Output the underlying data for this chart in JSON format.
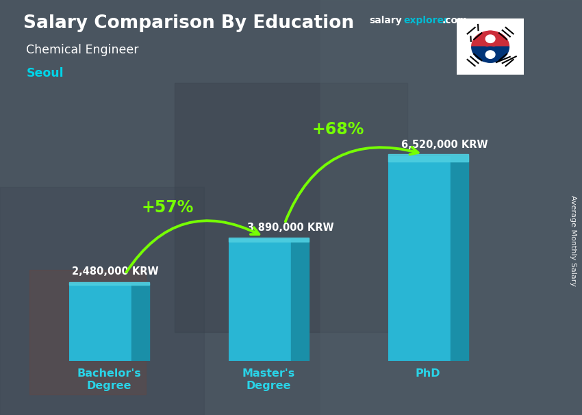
{
  "title_line1": "Salary Comparison By Education",
  "subtitle": "Chemical Engineer",
  "location": "Seoul",
  "categories": [
    "Bachelor's\nDegree",
    "Master's\nDegree",
    "PhD"
  ],
  "values": [
    2480000,
    3890000,
    6520000
  ],
  "value_labels": [
    "2,480,000 KRW",
    "3,890,000 KRW",
    "6,520,000 KRW"
  ],
  "bar_color_left": "#29b6d4",
  "bar_color_right": "#1a8fa8",
  "bar_color_top": "#4ecee0",
  "pct_labels": [
    "+57%",
    "+68%"
  ],
  "pct_color": "#76ff03",
  "arrow_color": "#76ff03",
  "bg_color": "#546575",
  "title_color": "#ffffff",
  "subtitle_color": "#ffffff",
  "location_color": "#00d4e8",
  "value_label_color": "#ffffff",
  "xlabel_color": "#29d4e8",
  "site_salary_color": "#ffffff",
  "site_explorer_color": "#00bcd4",
  "site_com_color": "#ffffff",
  "ylabel_text": "Average Monthly Salary",
  "ylim": [
    0,
    8200000
  ],
  "x_positions": [
    1.0,
    2.5,
    4.0
  ],
  "bar_width": 0.75
}
